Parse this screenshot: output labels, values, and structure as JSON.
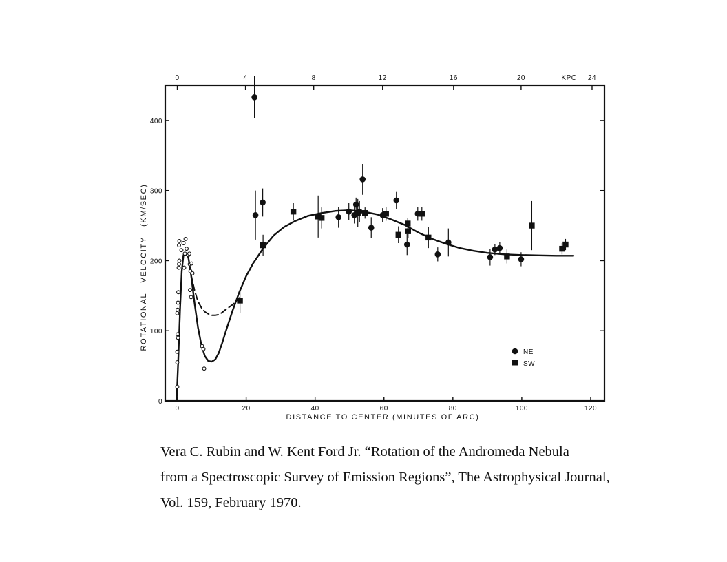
{
  "chart_data": {
    "type": "scatter",
    "xlabel": "DISTANCE TO CENTER (MINUTES OF ARC)",
    "ylabel": "ROTATIONAL VELOCITY (KM/SEC)",
    "xlim": [
      -3.5,
      124
    ],
    "ylim": [
      0,
      450
    ],
    "x_ticks": [
      0,
      20,
      40,
      60,
      80,
      100,
      120
    ],
    "y_ticks": [
      0,
      100,
      200,
      300,
      400
    ],
    "top_axis": {
      "unit_label": "KPC",
      "ticks": [
        {
          "label": "0",
          "x": 0
        },
        {
          "label": "4",
          "x": 19.8
        },
        {
          "label": "8",
          "x": 39.6
        },
        {
          "label": "12",
          "x": 59.6
        },
        {
          "label": "16",
          "x": 80.2
        },
        {
          "label": "20",
          "x": 99.8
        },
        {
          "label": "24",
          "x": 120.4
        }
      ],
      "unit_label_x": 113.7
    },
    "grid": false,
    "legend_position": "bottom-right",
    "series": [
      {
        "name": "NE",
        "marker": "circle",
        "points": [
          {
            "x": 22.4,
            "y": 433,
            "err": 30
          },
          {
            "x": 22.7,
            "y": 265,
            "err": 35
          },
          {
            "x": 24.8,
            "y": 283,
            "err": 20
          },
          {
            "x": 46.8,
            "y": 262,
            "err": 15
          },
          {
            "x": 49.8,
            "y": 270,
            "err": 12
          },
          {
            "x": 51.4,
            "y": 265,
            "err": 12
          },
          {
            "x": 51.9,
            "y": 280,
            "err": 10
          },
          {
            "x": 52.9,
            "y": 270,
            "err": 15
          },
          {
            "x": 53.8,
            "y": 316,
            "err": 22
          },
          {
            "x": 56.3,
            "y": 247,
            "err": 15
          },
          {
            "x": 59.6,
            "y": 265,
            "err": 10
          },
          {
            "x": 63.6,
            "y": 286,
            "err": 12
          },
          {
            "x": 66.7,
            "y": 223,
            "err": 15
          },
          {
            "x": 69.8,
            "y": 267,
            "err": 10
          },
          {
            "x": 75.6,
            "y": 209,
            "err": 10
          },
          {
            "x": 78.7,
            "y": 226,
            "err": 20
          },
          {
            "x": 90.8,
            "y": 205,
            "err": 12
          },
          {
            "x": 92.2,
            "y": 216,
            "err": 8
          },
          {
            "x": 93.6,
            "y": 218,
            "err": 8
          },
          {
            "x": 99.8,
            "y": 202,
            "err": 10
          }
        ]
      },
      {
        "name": "SW",
        "marker": "square",
        "points": [
          {
            "x": 18.2,
            "y": 143,
            "err": 18
          },
          {
            "x": 24.9,
            "y": 222,
            "err": 15
          },
          {
            "x": 33.7,
            "y": 270,
            "err": 12
          },
          {
            "x": 40.9,
            "y": 263,
            "err": 30
          },
          {
            "x": 41.9,
            "y": 261,
            "err": 15
          },
          {
            "x": 52.4,
            "y": 268,
            "err": 20
          },
          {
            "x": 54.5,
            "y": 268,
            "err": 8
          },
          {
            "x": 60.6,
            "y": 267,
            "err": 10
          },
          {
            "x": 64.2,
            "y": 237,
            "err": 12
          },
          {
            "x": 66.9,
            "y": 253,
            "err": 8
          },
          {
            "x": 67.0,
            "y": 242,
            "err": 10
          },
          {
            "x": 71.0,
            "y": 267,
            "err": 10
          },
          {
            "x": 72.9,
            "y": 233,
            "err": 15
          },
          {
            "x": 95.7,
            "y": 206,
            "err": 10
          },
          {
            "x": 102.9,
            "y": 250,
            "err": 35
          },
          {
            "x": 111.7,
            "y": 217,
            "err": 8
          },
          {
            "x": 112.7,
            "y": 223,
            "err": 8
          }
        ]
      },
      {
        "name": "",
        "marker": "open-circle",
        "points": [
          {
            "x": 0.0,
            "y": 20
          },
          {
            "x": 0.0,
            "y": 55
          },
          {
            "x": 0.0,
            "y": 70
          },
          {
            "x": 0.1,
            "y": 95
          },
          {
            "x": 0.2,
            "y": 90
          },
          {
            "x": 0.0,
            "y": 125
          },
          {
            "x": 0.1,
            "y": 130
          },
          {
            "x": 0.2,
            "y": 140
          },
          {
            "x": 0.3,
            "y": 155
          },
          {
            "x": 0.4,
            "y": 190
          },
          {
            "x": 0.5,
            "y": 195
          },
          {
            "x": 0.6,
            "y": 200
          },
          {
            "x": 0.5,
            "y": 222
          },
          {
            "x": 0.6,
            "y": 228
          },
          {
            "x": 1.2,
            "y": 215
          },
          {
            "x": 1.8,
            "y": 225
          },
          {
            "x": 2.0,
            "y": 190
          },
          {
            "x": 2.2,
            "y": 210
          },
          {
            "x": 2.4,
            "y": 231
          },
          {
            "x": 2.7,
            "y": 217
          },
          {
            "x": 3.2,
            "y": 208
          },
          {
            "x": 3.5,
            "y": 210
          },
          {
            "x": 3.6,
            "y": 195
          },
          {
            "x": 3.8,
            "y": 185
          },
          {
            "x": 4.1,
            "y": 196
          },
          {
            "x": 4.4,
            "y": 182
          },
          {
            "x": 3.7,
            "y": 158
          },
          {
            "x": 4.0,
            "y": 148
          },
          {
            "x": 7.2,
            "y": 78
          },
          {
            "x": 7.6,
            "y": 74
          },
          {
            "x": 7.8,
            "y": 46
          }
        ]
      }
    ],
    "curves": [
      {
        "style": "solid",
        "points": [
          [
            -0.2,
            0
          ],
          [
            0.3,
            60
          ],
          [
            0.8,
            130
          ],
          [
            1.3,
            185
          ],
          [
            1.8,
            208
          ],
          [
            2.5,
            210
          ],
          [
            3.2,
            205
          ],
          [
            4,
            180
          ],
          [
            5,
            140
          ],
          [
            6,
            105
          ],
          [
            7,
            80
          ],
          [
            8,
            64
          ],
          [
            9,
            57
          ],
          [
            10,
            56
          ],
          [
            11,
            59
          ],
          [
            12,
            68
          ],
          [
            13,
            82
          ],
          [
            14,
            98
          ],
          [
            16,
            128
          ],
          [
            18,
            155
          ],
          [
            20,
            178
          ],
          [
            22,
            196
          ],
          [
            25,
            218
          ],
          [
            28,
            236
          ],
          [
            31,
            248
          ],
          [
            34,
            256
          ],
          [
            38,
            264
          ],
          [
            42,
            268
          ],
          [
            46,
            271
          ],
          [
            50,
            272
          ],
          [
            54,
            270
          ],
          [
            58,
            266
          ],
          [
            62,
            259
          ],
          [
            66,
            251
          ],
          [
            70,
            240
          ],
          [
            74,
            231
          ],
          [
            78,
            224
          ],
          [
            82,
            218
          ],
          [
            86,
            214
          ],
          [
            90,
            211
          ],
          [
            95,
            209
          ],
          [
            100,
            208
          ],
          [
            105,
            207.5
          ],
          [
            110,
            207
          ],
          [
            115,
            207
          ]
        ]
      },
      {
        "style": "dashed",
        "points": [
          [
            4,
            180
          ],
          [
            5,
            158
          ],
          [
            6,
            142
          ],
          [
            7,
            133
          ],
          [
            8,
            127
          ],
          [
            9,
            124
          ],
          [
            10,
            122
          ],
          [
            11,
            122
          ],
          [
            12,
            123
          ],
          [
            13,
            126
          ],
          [
            14,
            130
          ],
          [
            16,
            137
          ],
          [
            18,
            147
          ]
        ]
      }
    ]
  },
  "caption": {
    "line1": "Vera C. Rubin and W. Kent Ford Jr. “Rotation of the Andromeda Nebula",
    "line2": "from a Spectroscopic Survey of Emission Regions”, The Astrophysical Journal,",
    "line3": "Vol. 159, February 1970."
  }
}
